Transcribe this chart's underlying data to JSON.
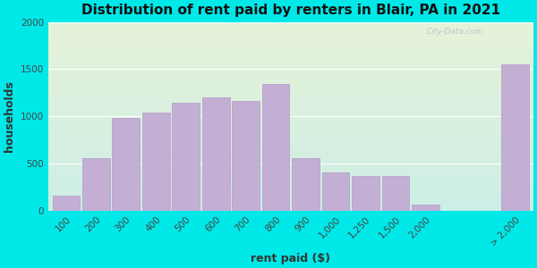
{
  "title": "Distribution of rent paid by renters in Blair, PA in 2021",
  "xlabel": "rent paid ($)",
  "ylabel": "households",
  "categories": [
    "100",
    "200",
    "300",
    "400",
    "500",
    "600",
    "700",
    "800",
    "900",
    "1,000",
    "1,250",
    "1,500",
    "2,000",
    "> 2,000"
  ],
  "values": [
    160,
    560,
    980,
    1040,
    1140,
    1200,
    1160,
    1340,
    560,
    410,
    370,
    370,
    70,
    1550
  ],
  "x_positions": [
    0,
    1,
    2,
    3,
    4,
    5,
    6,
    7,
    8,
    9,
    10,
    11,
    12,
    15
  ],
  "bar_color": "#c4afd4",
  "bar_edge_color": "#b898c8",
  "bg_outer": "#00e8e8",
  "bg_plot_top": "#e6f2d8",
  "bg_plot_bottom": "#cceee6",
  "ylim": [
    0,
    2000
  ],
  "yticks": [
    0,
    500,
    1000,
    1500,
    2000
  ],
  "title_fontsize": 11,
  "axis_label_fontsize": 9,
  "tick_fontsize": 7.5
}
